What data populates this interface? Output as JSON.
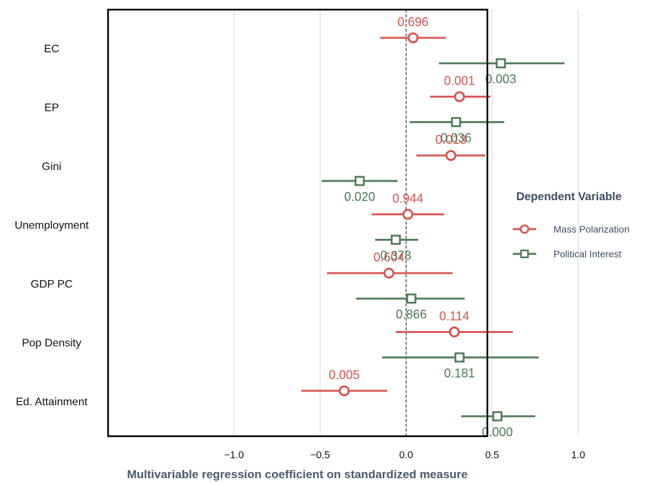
{
  "chart_data": {
    "type": "scatter",
    "subtype": "coefficient-plot",
    "xlabel": "Multivariable regression coefficient on standardized measure",
    "xlim": [
      -1.0,
      1.0
    ],
    "xticks": [
      -1.0,
      -0.5,
      0.0,
      0.5,
      1.0
    ],
    "xtick_labels": [
      "−1.0",
      "−0.5",
      "0.0",
      "0.5",
      "1.0"
    ],
    "reference_line": 0,
    "grid": "vertical",
    "categories": [
      "EC",
      "EP",
      "Gini",
      "Unemployment",
      "GDP PC",
      "Pop Density",
      "Ed. Attainment"
    ],
    "legend": {
      "title": "Dependent Variable",
      "position": "right"
    },
    "series": [
      {
        "name": "Mass Polarization",
        "marker": "circle",
        "color": "#d9534f",
        "points": [
          {
            "category": "EC",
            "estimate": 0.04,
            "low": -0.15,
            "high": 0.23,
            "label": "0.696"
          },
          {
            "category": "EP",
            "estimate": 0.31,
            "low": 0.14,
            "high": 0.49,
            "label": "0.001"
          },
          {
            "category": "Gini",
            "estimate": 0.26,
            "low": 0.06,
            "high": 0.46,
            "label": "0.013"
          },
          {
            "category": "Unemployment",
            "estimate": 0.01,
            "low": -0.2,
            "high": 0.22,
            "label": "0.944"
          },
          {
            "category": "GDP PC",
            "estimate": -0.1,
            "low": -0.46,
            "high": 0.27,
            "label": "0.604"
          },
          {
            "category": "Pop Density",
            "estimate": 0.28,
            "low": -0.06,
            "high": 0.62,
            "label": "0.114"
          },
          {
            "category": "Ed. Attainment",
            "estimate": -0.36,
            "low": -0.61,
            "high": -0.11,
            "label": "0.005"
          }
        ]
      },
      {
        "name": "Political Interest",
        "marker": "square",
        "color": "#4e7a57",
        "points": [
          {
            "category": "EC",
            "estimate": 0.55,
            "low": 0.19,
            "high": 0.92,
            "label": "0.003"
          },
          {
            "category": "EP",
            "estimate": 0.29,
            "low": 0.02,
            "high": 0.57,
            "label": "0.036"
          },
          {
            "category": "Gini",
            "estimate": -0.27,
            "low": -0.49,
            "high": -0.05,
            "label": "0.020"
          },
          {
            "category": "Unemployment",
            "estimate": -0.06,
            "low": -0.18,
            "high": 0.07,
            "label": "0.378"
          },
          {
            "category": "GDP PC",
            "estimate": 0.03,
            "low": -0.29,
            "high": 0.34,
            "label": "0.866"
          },
          {
            "category": "Pop Density",
            "estimate": 0.31,
            "low": -0.14,
            "high": 0.77,
            "label": "0.181"
          },
          {
            "category": "Ed. Attainment",
            "estimate": 0.53,
            "low": 0.32,
            "high": 0.75,
            "label": "0.000"
          }
        ]
      }
    ]
  }
}
